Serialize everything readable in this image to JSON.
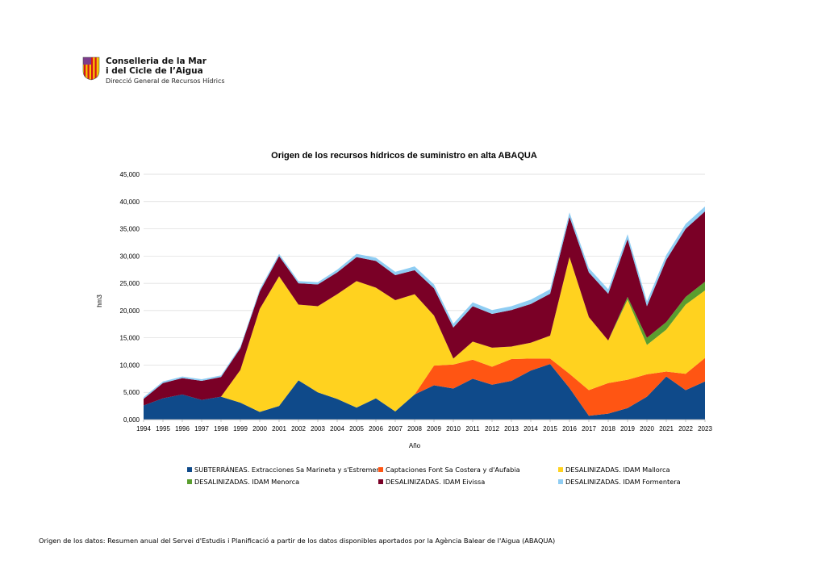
{
  "header": {
    "org_line1": "Conselleria de la Mar",
    "org_line2": "i del Cicle de l’Aigua",
    "org_sub": "Direcció General de Recursos Hídrics",
    "logo_icon": "balearic-coat-of-arms-icon"
  },
  "source_note": "Origen de los datos: Resumen anual del Servei d'Estudis i Planificació a partir de los datos disponibles aportados por la Agència Balear de l'Aigua (ABAQUA)",
  "chart_data": {
    "type": "area",
    "stacked": true,
    "title": "Origen de los recursos hídricos de suministro en alta ABAQUA",
    "xlabel": "Año",
    "ylabel": "hm3",
    "ylim": [
      0,
      45000
    ],
    "yticks": [
      0,
      5000,
      10000,
      15000,
      20000,
      25000,
      30000,
      35000,
      40000,
      45000
    ],
    "ytick_labels": [
      "0,000",
      "5,000",
      "10,000",
      "15,000",
      "20,000",
      "25,000",
      "30,000",
      "35,000",
      "40,000",
      "45,000"
    ],
    "grid": true,
    "legend_position": "bottom",
    "categories": [
      "1994",
      "1995",
      "1996",
      "1997",
      "1998",
      "1999",
      "2000",
      "2001",
      "2002",
      "2003",
      "2004",
      "2005",
      "2006",
      "2007",
      "2008",
      "2009",
      "2010",
      "2011",
      "2012",
      "2013",
      "2014",
      "2015",
      "2016",
      "2017",
      "2018",
      "2019",
      "2020",
      "2021",
      "2022",
      "2023"
    ],
    "series": [
      {
        "name": "SUBTERRÁNEAS. Extracciones Sa Marineta y s'Estremera",
        "color": "#0f4a8a",
        "values": [
          2600,
          3900,
          4600,
          3600,
          4200,
          3100,
          1400,
          2500,
          7200,
          5000,
          3800,
          2200,
          3900,
          1500,
          4600,
          6300,
          5700,
          7500,
          6400,
          7100,
          9000,
          10200,
          5800,
          700,
          1100,
          2100,
          4200,
          7900,
          5400,
          7000
        ]
      },
      {
        "name": "Captaciones Font Sa Costera y d'Aufabia",
        "color": "#ff5513",
        "values": [
          0,
          0,
          0,
          0,
          0,
          0,
          0,
          0,
          0,
          0,
          0,
          0,
          0,
          0,
          0,
          3600,
          4400,
          3500,
          3300,
          4000,
          2200,
          1000,
          2600,
          4700,
          5600,
          5200,
          4100,
          900,
          3000,
          4300
        ]
      },
      {
        "name": "DESALINIZADAS. IDAM Mallorca",
        "color": "#ffd21f",
        "values": [
          0,
          0,
          0,
          0,
          0,
          6000,
          18900,
          23800,
          13900,
          15800,
          19200,
          23200,
          20300,
          20400,
          18400,
          9200,
          1100,
          3300,
          3500,
          2300,
          2900,
          4200,
          21400,
          13400,
          7800,
          14700,
          5400,
          7700,
          12700,
          12400
        ]
      },
      {
        "name": "DESALINIZADAS. IDAM Menorca",
        "color": "#5a9e2f",
        "values": [
          0,
          0,
          0,
          0,
          0,
          0,
          0,
          0,
          0,
          0,
          0,
          0,
          0,
          0,
          0,
          0,
          0,
          0,
          0,
          0,
          0,
          0,
          0,
          0,
          0,
          500,
          1300,
          1400,
          1400,
          1600
        ]
      },
      {
        "name": "DESALINIZADAS. IDAM Eivissa",
        "color": "#7a0026",
        "values": [
          1200,
          2800,
          3000,
          3500,
          3600,
          4000,
          3200,
          3700,
          3900,
          4000,
          4000,
          4400,
          4900,
          4600,
          4400,
          5000,
          5700,
          6500,
          6200,
          6700,
          7100,
          7700,
          7400,
          8200,
          8600,
          10600,
          5800,
          11400,
          12500,
          12900
        ]
      },
      {
        "name": "DESALINIZADAS. IDAM Formentera",
        "color": "#8fcdf3",
        "values": [
          300,
          300,
          300,
          300,
          300,
          300,
          400,
          400,
          400,
          400,
          500,
          600,
          600,
          600,
          700,
          700,
          700,
          700,
          700,
          700,
          800,
          800,
          800,
          800,
          800,
          900,
          900,
          900,
          900,
          900
        ]
      }
    ]
  }
}
